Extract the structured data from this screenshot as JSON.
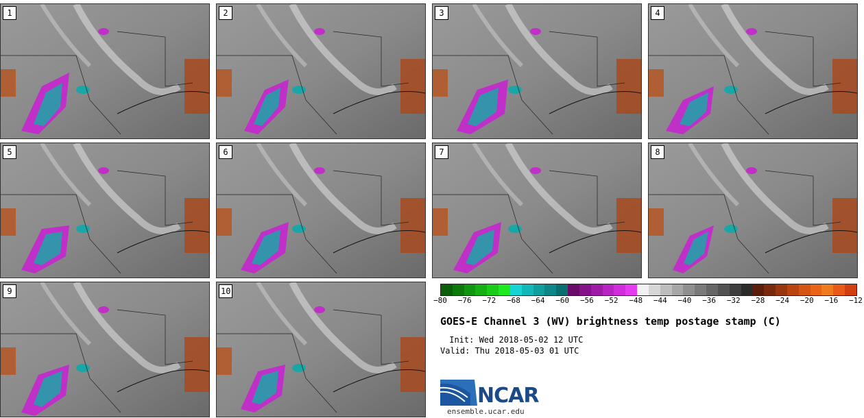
{
  "panels": [
    {
      "label": "1"
    },
    {
      "label": "2"
    },
    {
      "label": "3"
    },
    {
      "label": "4"
    },
    {
      "label": "5"
    },
    {
      "label": "6"
    },
    {
      "label": "7"
    },
    {
      "label": "8"
    },
    {
      "label": "9"
    },
    {
      "label": "10"
    }
  ],
  "colorbar": {
    "colors": [
      "#0a5e0a",
      "#0b7a0b",
      "#109610",
      "#14b014",
      "#18cc18",
      "#1ee81e",
      "#16d4d4",
      "#12b8b8",
      "#0f9e9e",
      "#0c8686",
      "#086e6e",
      "#6a0a6a",
      "#85128a",
      "#a01aa8",
      "#b824c4",
      "#d02edc",
      "#e63cf0",
      "#f2f2f2",
      "#d6d6d6",
      "#bdbdbd",
      "#a6a6a6",
      "#8f8f8f",
      "#7a7a7a",
      "#666666",
      "#525252",
      "#3e3e3e",
      "#2b2b2b",
      "#5a1e0a",
      "#7a2a0c",
      "#9a360e",
      "#ba4410",
      "#d45414",
      "#ea6418",
      "#f07a1e",
      "#e85a18",
      "#d04010"
    ],
    "tick_labels": [
      "−80",
      "−76",
      "−72",
      "−68",
      "−64",
      "−60",
      "−56",
      "−52",
      "−48",
      "−44",
      "−40",
      "−36",
      "−32",
      "−28",
      "−24",
      "−20",
      "−16",
      "−12"
    ]
  },
  "title": "GOES-E Channel 3 (WV) brightness temp postage stamp (C)",
  "init": " Init: Wed 2018-05-02 12 UTC",
  "valid": "Valid: Thu 2018-05-03 01 UTC",
  "logo": {
    "text": "NCAR",
    "url": "ensemble.ucar.edu"
  }
}
